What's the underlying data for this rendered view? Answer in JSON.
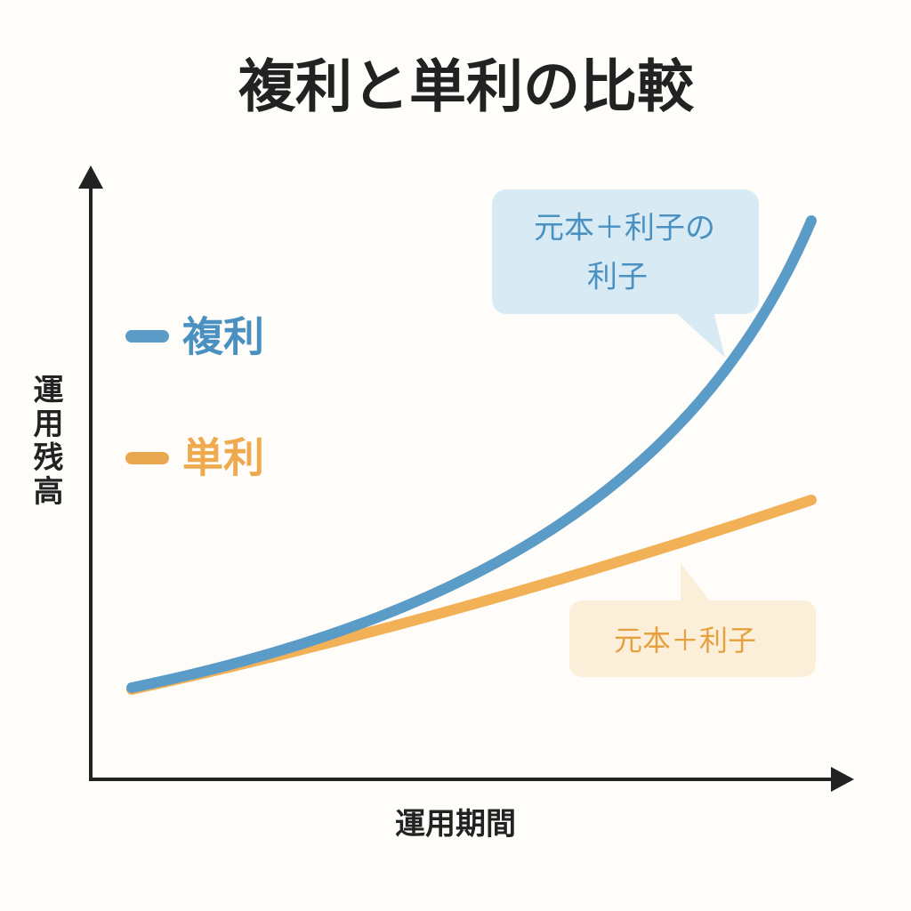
{
  "title": "複利と単利の比較",
  "y_axis_label": "運用残高",
  "x_axis_label": "運用期間",
  "legend": [
    {
      "label": "複利"
    },
    {
      "label": "単利"
    }
  ],
  "callouts": [
    {
      "lines": [
        "元本＋利子の",
        "利子"
      ]
    },
    {
      "lines": [
        "元本＋利子"
      ]
    }
  ]
}
